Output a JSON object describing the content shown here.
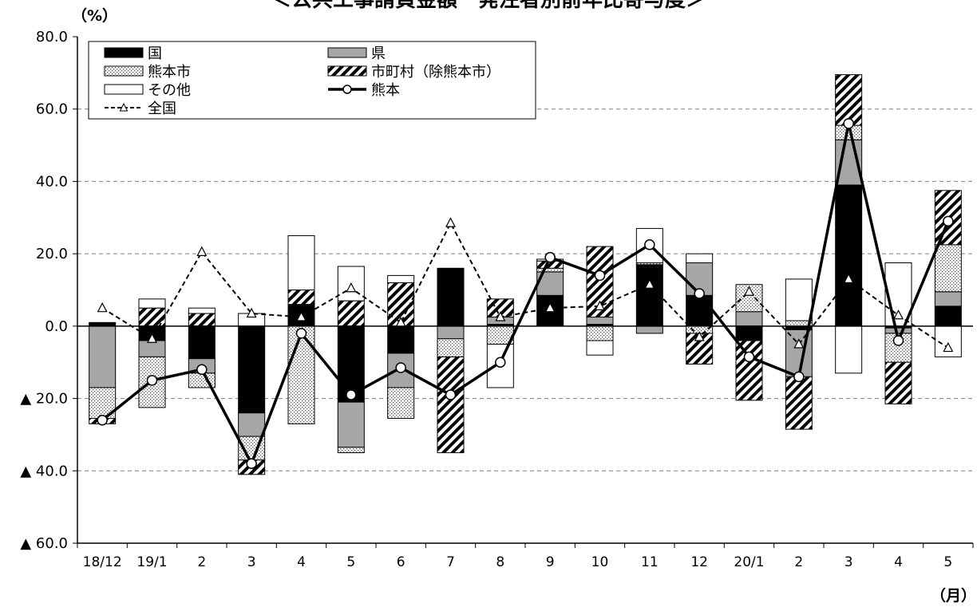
{
  "chart_data": {
    "type": "bar",
    "title": "＜公共工事請負金額　発注者別前年比寄与度＞",
    "y_unit": "（%）",
    "x_unit": "（月）",
    "ylim": [
      -60,
      80
    ],
    "y_ticks": [
      80,
      60,
      40,
      20,
      0,
      -20,
      -40,
      -60
    ],
    "y_tick_labels": [
      "80.0",
      "60.0",
      "40.0",
      "20.0",
      "0.0",
      "▲ 20.0",
      "▲ 40.0",
      "▲ 60.0"
    ],
    "grid": true,
    "legend_position": "top-left",
    "categories": [
      "18/12",
      "19/1",
      "2",
      "3",
      "4",
      "5",
      "6",
      "7",
      "8",
      "9",
      "10",
      "11",
      "12",
      "20/1",
      "2",
      "3",
      "4",
      "5"
    ],
    "stacked_series": [
      {
        "name": "国",
        "style": "solid-black",
        "values": [
          1.0,
          -4.0,
          -9.0,
          -24.0,
          6.0,
          -21.0,
          -7.5,
          16.0,
          0.5,
          8.5,
          0.5,
          17.0,
          8.5,
          -4.0,
          -1.0,
          39.0,
          -0.5,
          5.5
        ]
      },
      {
        "name": "県",
        "style": "solid-gray",
        "values": [
          -17.0,
          -4.5,
          -4.0,
          -6.5,
          0.0,
          -12.5,
          -9.5,
          -3.5,
          2.0,
          6.5,
          2.0,
          -2.0,
          9.0,
          4.0,
          -13.0,
          12.5,
          -1.5,
          4.0
        ]
      },
      {
        "name": "熊本市",
        "style": "dotted",
        "values": [
          -8.5,
          -14.0,
          -4.0,
          -6.5,
          -27.0,
          -1.5,
          -8.5,
          -5.0,
          -5.0,
          1.0,
          -4.0,
          0.5,
          -2.0,
          7.5,
          1.5,
          4.0,
          -8.0,
          13.0
        ]
      },
      {
        "name": "市町村（除熊本市）",
        "style": "hatched",
        "values": [
          -1.5,
          5.0,
          3.5,
          -4.0,
          4.0,
          7.0,
          12.0,
          -26.5,
          5.0,
          2.0,
          19.5,
          0.0,
          -8.5,
          -16.5,
          -14.5,
          14.0,
          -11.5,
          15.0
        ]
      },
      {
        "name": "その他",
        "style": "white",
        "values": [
          0.0,
          2.5,
          1.5,
          3.5,
          15.0,
          9.5,
          2.0,
          0.0,
          -12.0,
          0.5,
          -4.0,
          9.5,
          2.5,
          0.0,
          11.5,
          -13.0,
          17.5,
          -8.5
        ]
      }
    ],
    "line_series": [
      {
        "name": "熊本",
        "style": "solid-line-circle",
        "values": [
          -26.0,
          -15.0,
          -12.0,
          -38.0,
          -2.0,
          -19.0,
          -11.5,
          -19.0,
          -10.0,
          19.0,
          14.0,
          22.5,
          9.0,
          -8.5,
          -14.0,
          56.0,
          -4.0,
          29.0
        ]
      },
      {
        "name": "全国",
        "style": "dashed-line-triangle",
        "values": [
          5.0,
          -3.5,
          20.5,
          3.5,
          2.5,
          10.5,
          1.0,
          28.5,
          2.5,
          5.0,
          5.5,
          11.5,
          -3.0,
          9.5,
          -5.0,
          13.0,
          3.0,
          -6.0
        ]
      }
    ]
  }
}
